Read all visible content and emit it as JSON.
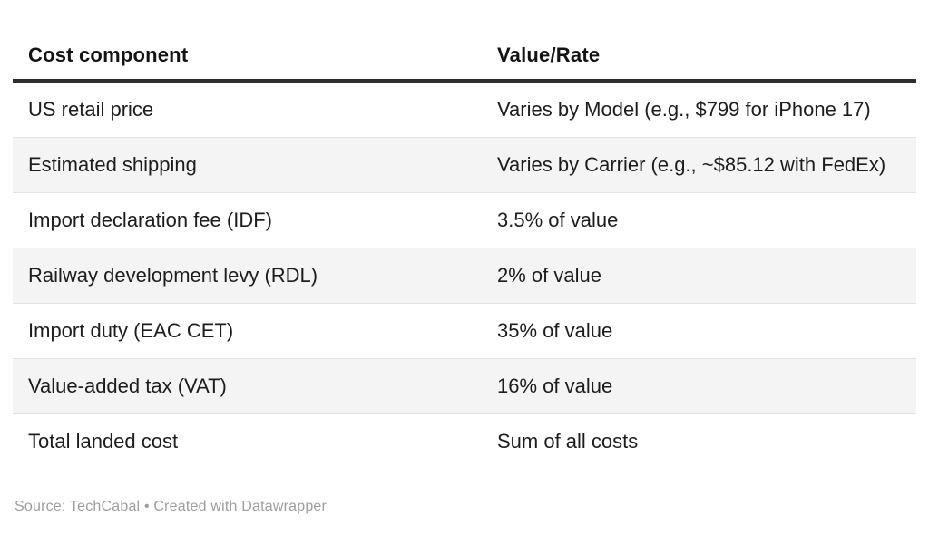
{
  "chart_data": {
    "type": "table",
    "columns": [
      "Cost component",
      "Value/Rate"
    ],
    "rows": [
      [
        "US retail price",
        "Varies by Model (e.g., $799 for iPhone 17)"
      ],
      [
        "Estimated shipping",
        "Varies by Carrier (e.g., ~$85.12 with FedEx)"
      ],
      [
        "Import declaration fee (IDF)",
        "3.5% of value"
      ],
      [
        "Railway development levy (RDL)",
        "2% of value"
      ],
      [
        "Import duty (EAC CET)",
        "35% of value"
      ],
      [
        "Value-added tax (VAT)",
        "16% of value"
      ],
      [
        "Total landed cost",
        "Sum of all costs"
      ]
    ],
    "layout": {
      "striped_rows": true,
      "stripe_start_row": 2,
      "header_rule": true
    }
  },
  "footer": {
    "source_text": "Source: TechCabal • Created with Datawrapper"
  },
  "colors": {
    "background": "#ffffff",
    "text": "#1d1d1d",
    "header_text": "#141414",
    "header_rule": "#2e2e2e",
    "row_stripe": "#f4f4f4",
    "row_border": "#e3e3e3",
    "footer_text": "#9e9e9e"
  }
}
